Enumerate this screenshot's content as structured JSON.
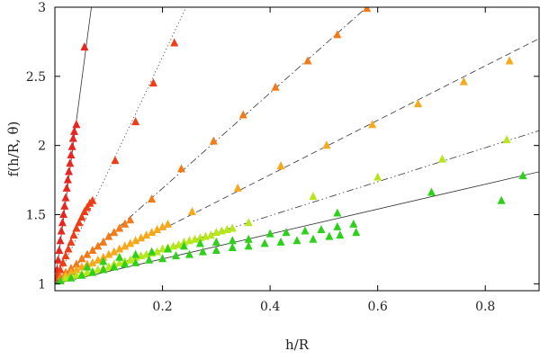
{
  "chart_data": {
    "type": "scatter",
    "xlabel": "h/R",
    "ylabel": "f(h/R, θ)",
    "xlim": [
      0,
      0.9
    ],
    "ylim": [
      0.95,
      3.0
    ],
    "x_ticks": [
      {
        "value": 0.2,
        "label": "0.2"
      },
      {
        "value": 0.4,
        "label": "0.4"
      },
      {
        "value": 0.6,
        "label": "0.6"
      },
      {
        "value": 0.8,
        "label": "0.8"
      }
    ],
    "y_ticks": [
      {
        "value": 1.0,
        "label": "1"
      },
      {
        "value": 1.5,
        "label": "1.5"
      },
      {
        "value": 2.0,
        "label": "2"
      },
      {
        "value": 2.5,
        "label": "2.5"
      },
      {
        "value": 3.0,
        "label": "3"
      }
    ],
    "grid": false,
    "series": [
      {
        "color": "#e8261f",
        "line": {
          "x0": 0,
          "y0": 1.0,
          "slope": 29.5,
          "dash": "solid"
        },
        "points": [
          [
            0.002,
            1.04
          ],
          [
            0.004,
            1.1
          ],
          [
            0.006,
            1.17
          ],
          [
            0.008,
            1.24
          ],
          [
            0.01,
            1.31
          ],
          [
            0.012,
            1.38
          ],
          [
            0.014,
            1.44
          ],
          [
            0.016,
            1.5
          ],
          [
            0.018,
            1.56
          ],
          [
            0.02,
            1.62
          ],
          [
            0.022,
            1.69
          ],
          [
            0.024,
            1.75
          ],
          [
            0.026,
            1.81
          ],
          [
            0.028,
            1.87
          ],
          [
            0.03,
            1.93
          ],
          [
            0.032,
            1.99
          ],
          [
            0.034,
            2.05
          ],
          [
            0.036,
            2.1
          ],
          [
            0.04,
            2.15
          ],
          [
            0.055,
            2.71
          ]
        ]
      },
      {
        "color": "#f03c14",
        "line": {
          "x0": 0,
          "y0": 1.0,
          "slope": 8.2,
          "dash": "dotted"
        },
        "points": [
          [
            0.005,
            1.06
          ],
          [
            0.01,
            1.1
          ],
          [
            0.015,
            1.15
          ],
          [
            0.02,
            1.2
          ],
          [
            0.025,
            1.25
          ],
          [
            0.03,
            1.3
          ],
          [
            0.035,
            1.35
          ],
          [
            0.04,
            1.4
          ],
          [
            0.045,
            1.44
          ],
          [
            0.05,
            1.48
          ],
          [
            0.055,
            1.52
          ],
          [
            0.06,
            1.55
          ],
          [
            0.065,
            1.58
          ],
          [
            0.07,
            1.6
          ],
          [
            0.112,
            1.89
          ],
          [
            0.15,
            2.17
          ],
          [
            0.183,
            2.45
          ],
          [
            0.222,
            2.74
          ]
        ]
      },
      {
        "color": "#f37a16",
        "line": {
          "x0": 0,
          "y0": 1.0,
          "slope": 3.45,
          "dash": "dashdot"
        },
        "points": [
          [
            0.01,
            1.05
          ],
          [
            0.02,
            1.08
          ],
          [
            0.03,
            1.11
          ],
          [
            0.04,
            1.14
          ],
          [
            0.05,
            1.18
          ],
          [
            0.06,
            1.21
          ],
          [
            0.07,
            1.24
          ],
          [
            0.08,
            1.27
          ],
          [
            0.09,
            1.3
          ],
          [
            0.1,
            1.34
          ],
          [
            0.11,
            1.37
          ],
          [
            0.12,
            1.4
          ],
          [
            0.13,
            1.43
          ],
          [
            0.14,
            1.46
          ],
          [
            0.18,
            1.61
          ],
          [
            0.235,
            1.83
          ],
          [
            0.295,
            2.03
          ],
          [
            0.35,
            2.22
          ],
          [
            0.41,
            2.42
          ],
          [
            0.47,
            2.61
          ],
          [
            0.525,
            2.8
          ],
          [
            0.58,
            2.99
          ]
        ]
      },
      {
        "color": "#f7a81b",
        "line": {
          "x0": 0,
          "y0": 1.0,
          "slope": 1.97,
          "dash": "dashed"
        },
        "points": [
          [
            0.02,
            1.06
          ],
          [
            0.03,
            1.08
          ],
          [
            0.04,
            1.1
          ],
          [
            0.05,
            1.12
          ],
          [
            0.06,
            1.14
          ],
          [
            0.07,
            1.15
          ],
          [
            0.08,
            1.17
          ],
          [
            0.09,
            1.19
          ],
          [
            0.1,
            1.21
          ],
          [
            0.11,
            1.23
          ],
          [
            0.12,
            1.25
          ],
          [
            0.13,
            1.27
          ],
          [
            0.14,
            1.29
          ],
          [
            0.15,
            1.31
          ],
          [
            0.16,
            1.33
          ],
          [
            0.17,
            1.35
          ],
          [
            0.18,
            1.37
          ],
          [
            0.19,
            1.39
          ],
          [
            0.2,
            1.41
          ],
          [
            0.21,
            1.43
          ],
          [
            0.255,
            1.52
          ],
          [
            0.34,
            1.69
          ],
          [
            0.42,
            1.85
          ],
          [
            0.505,
            2.0
          ],
          [
            0.59,
            2.15
          ],
          [
            0.675,
            2.3
          ],
          [
            0.76,
            2.46
          ],
          [
            0.845,
            2.61
          ]
        ]
      },
      {
        "color": "#b6e61c",
        "line": {
          "x0": 0,
          "y0": 1.0,
          "slope": 1.23,
          "dash": "dashdotdot"
        },
        "points": [
          [
            0.01,
            1.02
          ],
          [
            0.02,
            1.04
          ],
          [
            0.03,
            1.05
          ],
          [
            0.04,
            1.06
          ],
          [
            0.05,
            1.07
          ],
          [
            0.06,
            1.08
          ],
          [
            0.07,
            1.09
          ],
          [
            0.08,
            1.1
          ],
          [
            0.09,
            1.11
          ],
          [
            0.1,
            1.12
          ],
          [
            0.11,
            1.14
          ],
          [
            0.12,
            1.15
          ],
          [
            0.13,
            1.16
          ],
          [
            0.14,
            1.17
          ],
          [
            0.15,
            1.19
          ],
          [
            0.16,
            1.2
          ],
          [
            0.17,
            1.21
          ],
          [
            0.18,
            1.22
          ],
          [
            0.19,
            1.23
          ],
          [
            0.2,
            1.25
          ],
          [
            0.21,
            1.26
          ],
          [
            0.22,
            1.27
          ],
          [
            0.23,
            1.28
          ],
          [
            0.24,
            1.3
          ],
          [
            0.25,
            1.31
          ],
          [
            0.26,
            1.32
          ],
          [
            0.27,
            1.33
          ],
          [
            0.28,
            1.34
          ],
          [
            0.29,
            1.35
          ],
          [
            0.3,
            1.37
          ],
          [
            0.31,
            1.38
          ],
          [
            0.32,
            1.39
          ],
          [
            0.33,
            1.4
          ],
          [
            0.36,
            1.44
          ],
          [
            0.48,
            1.63
          ],
          [
            0.6,
            1.77
          ],
          [
            0.72,
            1.9
          ],
          [
            0.84,
            2.04
          ]
        ]
      },
      {
        "color": "#2ed11a",
        "line": {
          "x0": 0,
          "y0": 1.0,
          "slope": 0.9,
          "dash": "solid"
        },
        "points": [
          [
            0.01,
            1.02
          ],
          [
            0.03,
            1.04
          ],
          [
            0.05,
            1.06
          ],
          [
            0.07,
            1.08
          ],
          [
            0.09,
            1.1
          ],
          [
            0.11,
            1.12
          ],
          [
            0.13,
            1.14
          ],
          [
            0.15,
            1.15
          ],
          [
            0.175,
            1.17
          ],
          [
            0.2,
            1.18
          ],
          [
            0.225,
            1.2
          ],
          [
            0.25,
            1.21
          ],
          [
            0.275,
            1.23
          ],
          [
            0.3,
            1.24
          ],
          [
            0.33,
            1.26
          ],
          [
            0.36,
            1.27
          ],
          [
            0.39,
            1.29
          ],
          [
            0.42,
            1.3
          ],
          [
            0.45,
            1.31
          ],
          [
            0.48,
            1.32
          ],
          [
            0.51,
            1.34
          ],
          [
            0.53,
            1.35
          ],
          [
            0.56,
            1.37
          ],
          [
            0.4,
            1.36
          ],
          [
            0.43,
            1.37
          ],
          [
            0.465,
            1.38
          ],
          [
            0.495,
            1.39
          ],
          [
            0.525,
            1.41
          ],
          [
            0.555,
            1.43
          ],
          [
            0.36,
            1.32
          ],
          [
            0.33,
            1.31
          ],
          [
            0.3,
            1.3
          ],
          [
            0.27,
            1.29
          ],
          [
            0.24,
            1.27
          ],
          [
            0.21,
            1.25
          ],
          [
            0.18,
            1.23
          ],
          [
            0.15,
            1.21
          ],
          [
            0.12,
            1.19
          ],
          [
            0.09,
            1.16
          ],
          [
            0.06,
            1.12
          ],
          [
            0.525,
            1.51
          ],
          [
            0.7,
            1.66
          ],
          [
            0.87,
            1.78
          ],
          [
            0.83,
            1.6
          ]
        ]
      }
    ]
  }
}
